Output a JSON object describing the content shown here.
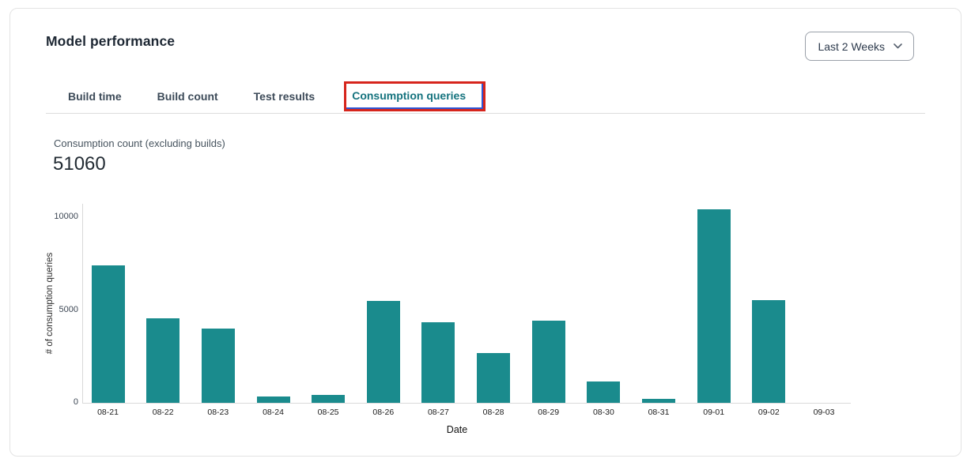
{
  "header": {
    "title": "Model performance",
    "range_selector": {
      "value": "Last 2 Weeks"
    }
  },
  "tabs": [
    {
      "label": "Build time",
      "active": false
    },
    {
      "label": "Build count",
      "active": false
    },
    {
      "label": "Test results",
      "active": false
    },
    {
      "label": "Consumption queries",
      "active": true,
      "annotated": true
    }
  ],
  "metric": {
    "label": "Consumption count (excluding builds)",
    "value": "51060"
  },
  "chart_data": {
    "type": "bar",
    "title": "",
    "categories": [
      "08-21",
      "08-22",
      "08-23",
      "08-24",
      "08-25",
      "08-26",
      "08-27",
      "08-28",
      "08-29",
      "08-30",
      "08-31",
      "09-01",
      "09-02",
      "09-03"
    ],
    "values": [
      7400,
      4570,
      4020,
      320,
      440,
      5480,
      4330,
      2700,
      4440,
      1140,
      230,
      10440,
      5550,
      0
    ],
    "xlabel": "Date",
    "ylabel": "# of consumption queries",
    "ylim": [
      0,
      10000
    ],
    "yticks": [
      0,
      5000,
      10000
    ],
    "grid": false,
    "legend": "none",
    "bar_color": "#1a8b8d"
  },
  "colors": {
    "active_tab_teal": "#15737e",
    "bar_teal": "#1a8b8d",
    "annotation_red": "#d6251c",
    "card_border": "#e3e3e3"
  }
}
